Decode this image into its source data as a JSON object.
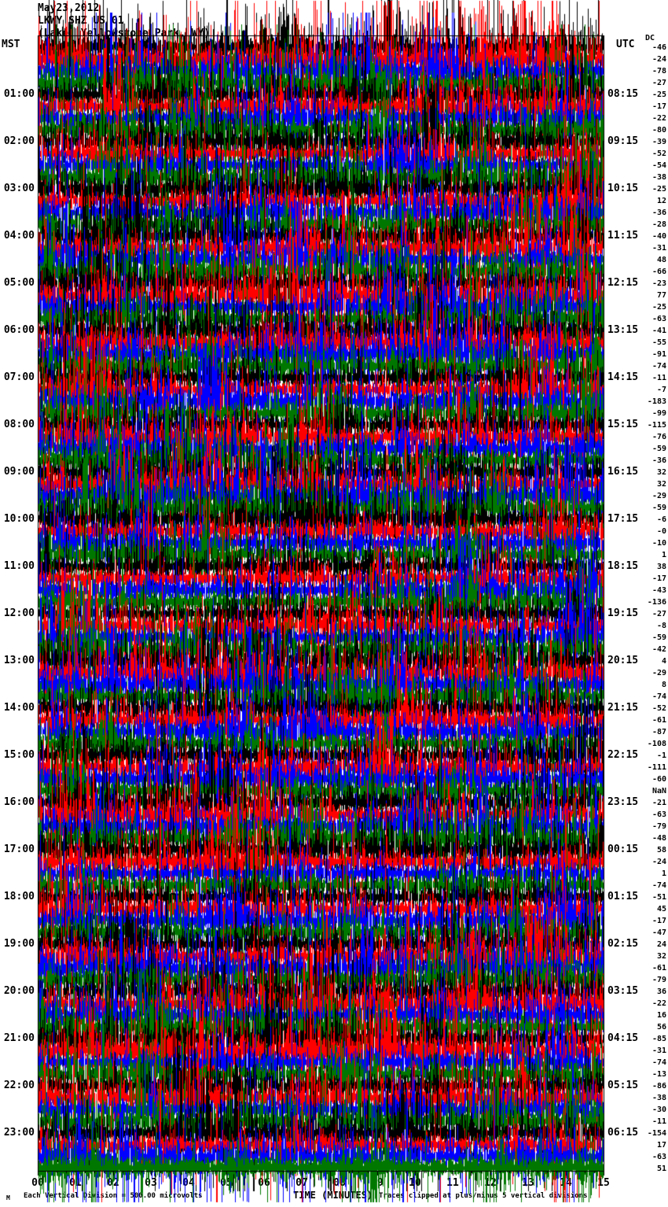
{
  "header": {
    "date": "May23,2012",
    "station": "LKWY SHZ US 01",
    "location": "(Lake, Yellowstone Park, WY)"
  },
  "axes": {
    "left_time_zone": "MST",
    "right_time_zone": "UTC",
    "dc_column_label": "DC",
    "x_axis_label": "TIME (MINUTES)",
    "minute_labels": [
      "00",
      "01",
      "02",
      "03",
      "04",
      "05",
      "06",
      "07",
      "08",
      "09",
      "10",
      "11",
      "12",
      "13",
      "14",
      "15"
    ]
  },
  "footer": {
    "watermark": "M",
    "scale_note": "Each Vertical Division = 500.00 microvolts",
    "clip_note": "Traces clipped at plus/minus 5 vertical divisions"
  },
  "hour_rows": [
    {
      "mst": "01:00",
      "utc": "08:15"
    },
    {
      "mst": "02:00",
      "utc": "09:15"
    },
    {
      "mst": "03:00",
      "utc": "10:15"
    },
    {
      "mst": "04:00",
      "utc": "11:15"
    },
    {
      "mst": "05:00",
      "utc": "12:15"
    },
    {
      "mst": "06:00",
      "utc": "13:15"
    },
    {
      "mst": "07:00",
      "utc": "14:15"
    },
    {
      "mst": "08:00",
      "utc": "15:15"
    },
    {
      "mst": "09:00",
      "utc": "16:15"
    },
    {
      "mst": "10:00",
      "utc": "17:15"
    },
    {
      "mst": "11:00",
      "utc": "18:15"
    },
    {
      "mst": "12:00",
      "utc": "19:15"
    },
    {
      "mst": "13:00",
      "utc": "20:15"
    },
    {
      "mst": "14:00",
      "utc": "21:15"
    },
    {
      "mst": "15:00",
      "utc": "22:15"
    },
    {
      "mst": "16:00",
      "utc": "23:15"
    },
    {
      "mst": "17:00",
      "utc": "00:15"
    },
    {
      "mst": "18:00",
      "utc": "01:15"
    },
    {
      "mst": "19:00",
      "utc": "02:15"
    },
    {
      "mst": "20:00",
      "utc": "03:15"
    },
    {
      "mst": "21:00",
      "utc": "04:15"
    },
    {
      "mst": "22:00",
      "utc": "05:15"
    },
    {
      "mst": "23:00",
      "utc": "06:15"
    }
  ],
  "chart_data": {
    "type": "line",
    "title": "May23,2012 LKWY SHZ US 01 (Lake, Yellowstone Park, WY)",
    "description": "24-hour helicorder (webicorder) seismogram: 96 trace rows of 15 minutes each, drawn left-to-right, cycling trace colors per row; continuous high-amplitude clipped noise fills the plot. Individual waveform samples are not legible; rows are characterized by their start time, color and DC offset.",
    "rows": 96,
    "minutes_per_row": 15,
    "x_range_minutes": [
      0,
      15
    ],
    "row_color_cycle": [
      "#000000",
      "#ff0000",
      "#0000ff",
      "#007800"
    ],
    "first_row_start_mst": "00:00",
    "clip_divisions": 5,
    "microvolts_per_division": "500.00",
    "grid": "vertical gray line each minute",
    "legend_position": "none",
    "dc_offsets": [
      "-46",
      "-24",
      "-78",
      "-27",
      "-25",
      "-17",
      "-22",
      "-80",
      "-39",
      "-52",
      "-54",
      "-38",
      "-25",
      "12",
      "-36",
      "-28",
      "-40",
      "-31",
      "48",
      "-66",
      "-23",
      "77",
      "-25",
      "-63",
      "-41",
      "-55",
      "-91",
      "-74",
      "-11",
      "-7",
      "-183",
      "-99",
      "-115",
      "-76",
      "-59",
      "-36",
      "32",
      "32",
      "-29",
      "-59",
      "-6",
      "-0",
      "-10",
      "1",
      "38",
      "-17",
      "-43",
      "-136",
      "-27",
      "-8",
      "-59",
      "-42",
      "4",
      "-29",
      "8",
      "-74",
      "-52",
      "-61",
      "-87",
      "-108",
      "-1",
      "-111",
      "-60",
      "NaN",
      "-21",
      "-63",
      "-79",
      "-48",
      "58",
      "-24",
      "1",
      "-74",
      "-51",
      "45",
      "-17",
      "-47",
      "24",
      "32",
      "-61",
      "-79",
      "36",
      "-22",
      "16",
      "56",
      "-85",
      "-31",
      "-74",
      "-13",
      "-86",
      "-38",
      "-30",
      "-11",
      "-154",
      "17",
      "-63",
      "51"
    ]
  },
  "colors": {
    "background": "#ffffff",
    "grid": "#909090",
    "border": "#000000",
    "text": "#000000"
  }
}
